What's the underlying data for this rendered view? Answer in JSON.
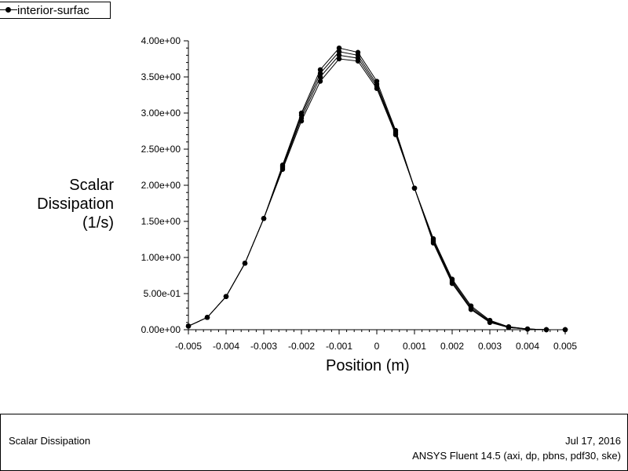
{
  "legend": {
    "label": "interior-surfac"
  },
  "chart_data": {
    "type": "line",
    "xlabel": "Position (m)",
    "ylabel": "Scalar\nDissipation\n(1/s)",
    "xlim": [
      -0.005,
      0.005
    ],
    "ylim": [
      0,
      4
    ],
    "x_ticks": [
      "-0.005",
      "-0.004",
      "-0.003",
      "-0.002",
      "-0.001",
      "0",
      "0.001",
      "0.002",
      "0.003",
      "0.004",
      "0.005"
    ],
    "y_ticks": [
      "0.00e+00",
      "5.00e-01",
      "1.00e+00",
      "1.50e+00",
      "2.00e+00",
      "2.50e+00",
      "3.00e+00",
      "3.50e+00",
      "4.00e+00"
    ],
    "series": [
      {
        "name": "interior-surfac",
        "x": [
          -0.005,
          -0.0045,
          -0.004,
          -0.0035,
          -0.003,
          -0.0025,
          -0.002,
          -0.0015,
          -0.001,
          -0.0005,
          0,
          0.0005,
          0.001,
          0.0015,
          0.002,
          0.0025,
          0.003,
          0.0035,
          0.004,
          0.0045,
          0.005
        ],
        "values": [
          0.05,
          0.17,
          0.46,
          0.92,
          1.54,
          2.28,
          3.0,
          3.6,
          3.9,
          3.84,
          3.44,
          2.76,
          1.96,
          1.26,
          0.7,
          0.33,
          0.13,
          0.04,
          0.01,
          0.0,
          0.0
        ]
      },
      {
        "x": [
          -0.005,
          -0.0045,
          -0.004,
          -0.0035,
          -0.003,
          -0.0025,
          -0.002,
          -0.0015,
          -0.001,
          -0.0005,
          0,
          0.0005,
          0.001,
          0.0015,
          0.002,
          0.0025,
          0.003,
          0.0035,
          0.004,
          0.0045,
          0.005
        ],
        "values": [
          0.05,
          0.17,
          0.46,
          0.92,
          1.54,
          2.26,
          2.97,
          3.55,
          3.85,
          3.8,
          3.4,
          2.74,
          1.96,
          1.24,
          0.68,
          0.31,
          0.12,
          0.04,
          0.01,
          0.0,
          0.0
        ]
      },
      {
        "x": [
          -0.005,
          -0.0045,
          -0.004,
          -0.0035,
          -0.003,
          -0.0025,
          -0.002,
          -0.0015,
          -0.001,
          -0.0005,
          0,
          0.0005,
          0.001,
          0.0015,
          0.002,
          0.0025,
          0.003,
          0.0035,
          0.004,
          0.0045,
          0.005
        ],
        "values": [
          0.05,
          0.17,
          0.46,
          0.92,
          1.54,
          2.24,
          2.93,
          3.5,
          3.8,
          3.76,
          3.37,
          2.72,
          1.96,
          1.22,
          0.66,
          0.29,
          0.11,
          0.03,
          0.01,
          0.0,
          0.0
        ]
      },
      {
        "x": [
          -0.005,
          -0.0045,
          -0.004,
          -0.0035,
          -0.003,
          -0.0025,
          -0.002,
          -0.0015,
          -0.001,
          -0.0005,
          0,
          0.0005,
          0.001,
          0.0015,
          0.002,
          0.0025,
          0.003,
          0.0035,
          0.004,
          0.0045,
          0.005
        ],
        "values": [
          0.05,
          0.17,
          0.46,
          0.92,
          1.54,
          2.22,
          2.89,
          3.44,
          3.75,
          3.72,
          3.34,
          2.7,
          1.96,
          1.2,
          0.64,
          0.28,
          0.1,
          0.03,
          0.01,
          0.0,
          0.0
        ]
      }
    ]
  },
  "footer": {
    "title": "Scalar Dissipation",
    "date": "Jul 17, 2016",
    "software": "ANSYS Fluent 14.5 (axi, dp, pbns, pdf30, ske)"
  }
}
